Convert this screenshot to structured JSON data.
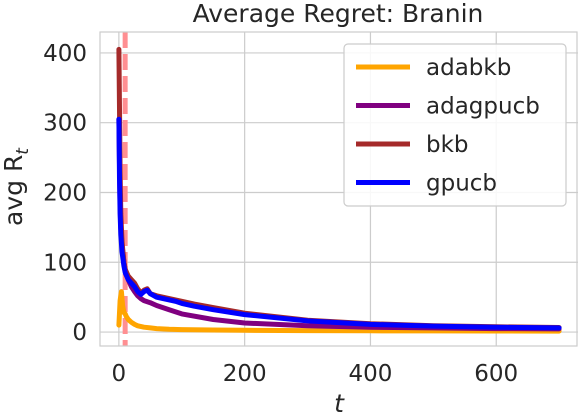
{
  "chart_data": {
    "type": "line",
    "title": "Average Regret: Branin",
    "xlabel": "t",
    "ylabel": "avg R",
    "ylabel_subscript": "t",
    "xlim": [
      -30,
      730
    ],
    "ylim": [
      -20,
      430
    ],
    "xticks": [
      0,
      200,
      400,
      600
    ],
    "yticks": [
      0,
      100,
      200,
      300,
      400
    ],
    "grid": true,
    "legend_position": "top-right",
    "vline": {
      "x": 10,
      "color": "#ff8f92",
      "style": "dashed"
    },
    "series": [
      {
        "name": "adabkb",
        "color": "#ffa500",
        "x": [
          0,
          2,
          4,
          6,
          8,
          10,
          12,
          15,
          20,
          25,
          30,
          40,
          50,
          60,
          80,
          100,
          150,
          200,
          300,
          400,
          500,
          600,
          700
        ],
        "y": [
          10,
          45,
          58,
          38,
          28,
          26,
          22,
          18,
          14,
          11,
          9,
          7,
          6,
          5,
          4,
          3.5,
          3,
          2.5,
          2,
          1.8,
          1.6,
          1.5,
          1.4
        ]
      },
      {
        "name": "adagpucb",
        "color": "#800080",
        "x": [
          0,
          1,
          2,
          3,
          5,
          8,
          10,
          15,
          20,
          25,
          30,
          35,
          40,
          50,
          60,
          80,
          100,
          150,
          200,
          300,
          400,
          500,
          600,
          700
        ],
        "y": [
          305,
          240,
          180,
          150,
          125,
          100,
          90,
          75,
          65,
          58,
          52,
          48,
          45,
          42,
          38,
          32,
          26,
          18,
          13,
          9,
          7,
          6,
          5,
          4.5
        ]
      },
      {
        "name": "bkb",
        "color": "#a52a2a",
        "x": [
          0,
          1,
          2,
          3,
          5,
          8,
          10,
          15,
          20,
          25,
          30,
          35,
          40,
          45,
          50,
          60,
          70,
          80,
          90,
          100,
          120,
          150,
          200,
          300,
          400,
          500,
          600,
          700
        ],
        "y": [
          405,
          320,
          230,
          170,
          130,
          100,
          90,
          80,
          75,
          70,
          62,
          56,
          60,
          62,
          55,
          52,
          50,
          48,
          46,
          44,
          40,
          35,
          27,
          17,
          12,
          9,
          7.5,
          6.5
        ]
      },
      {
        "name": "gpucb",
        "color": "#0000ff",
        "x": [
          0,
          1,
          2,
          3,
          5,
          8,
          10,
          15,
          20,
          25,
          30,
          35,
          40,
          45,
          50,
          60,
          70,
          80,
          90,
          100,
          120,
          150,
          200,
          300,
          400,
          500,
          600,
          700
        ],
        "y": [
          305,
          220,
          170,
          140,
          115,
          95,
          85,
          75,
          70,
          65,
          58,
          54,
          58,
          60,
          55,
          50,
          48,
          46,
          44,
          41,
          37,
          32,
          25,
          16,
          11,
          8.5,
          7,
          6
        ]
      }
    ]
  }
}
